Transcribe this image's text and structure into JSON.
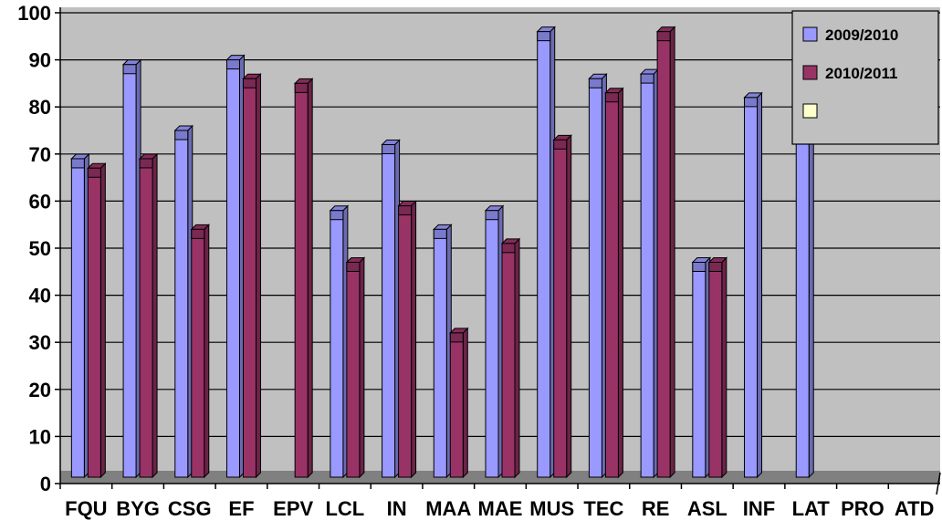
{
  "chart_data": {
    "type": "bar",
    "title": "",
    "xlabel": "",
    "ylabel": "",
    "ylim": [
      0,
      100
    ],
    "y_ticks": [
      "0",
      "10",
      "20",
      "30",
      "40",
      "50",
      "60",
      "70",
      "80",
      "90",
      "100"
    ],
    "grid": true,
    "legend_position": "top-right",
    "categories": [
      "FQU",
      "BYG",
      "CSG",
      "EF",
      "EPV",
      "LCL",
      "IN",
      "MAA",
      "MAE",
      "MUS",
      "TEC",
      "RE",
      "ASL",
      "INF",
      "LAT",
      "PRO",
      "ATD"
    ],
    "series": [
      {
        "name": "2009/2010",
        "color": "#9999ff",
        "values": [
          69,
          89,
          75,
          90,
          null,
          58,
          72,
          54,
          58,
          96,
          86,
          87,
          47,
          82,
          89,
          null,
          null
        ]
      },
      {
        "name": "2010/2011",
        "color": "#993366",
        "values": [
          67,
          69,
          54,
          86,
          85,
          47,
          59,
          32,
          51,
          73,
          83,
          96,
          47,
          null,
          null,
          null,
          null
        ]
      },
      {
        "name": "",
        "color": "#ffffcc",
        "values": [
          null,
          null,
          null,
          null,
          null,
          null,
          null,
          null,
          null,
          null,
          null,
          null,
          null,
          null,
          null,
          null,
          null
        ]
      }
    ],
    "plot_background": "#c0c0c0",
    "floor_color": "#808080"
  }
}
